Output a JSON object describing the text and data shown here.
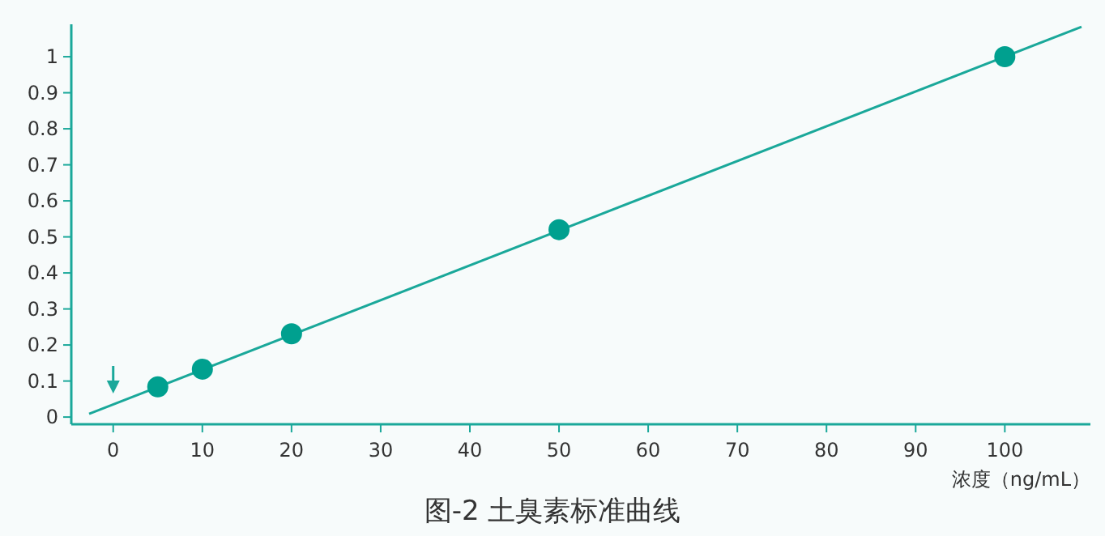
{
  "chart_data": {
    "type": "scatter",
    "title": "图-2 土臭素标准曲线",
    "xlabel": "浓度（ng/mL）",
    "xlim": [
      -4.7,
      109.6
    ],
    "ylim": [
      -0.02,
      1.09
    ],
    "xticks": [
      0,
      10,
      20,
      30,
      40,
      50,
      60,
      70,
      80,
      90,
      100
    ],
    "yticks": [
      0,
      0.1,
      0.2,
      0.3,
      0.4,
      0.5,
      0.6,
      0.7,
      0.8,
      0.9,
      1
    ],
    "grid": false,
    "marker": "circle",
    "series": [
      {
        "type": "line",
        "color": "#1aa89a",
        "x": [
          -2.7,
          108.6
        ],
        "values": [
          0.009,
          1.083
        ],
        "marker": "none"
      },
      {
        "color": "#00a08f",
        "x": [
          5,
          10,
          20,
          50,
          100
        ],
        "values": [
          0.084,
          0.133,
          0.231,
          0.52,
          1.0
        ]
      }
    ]
  }
}
